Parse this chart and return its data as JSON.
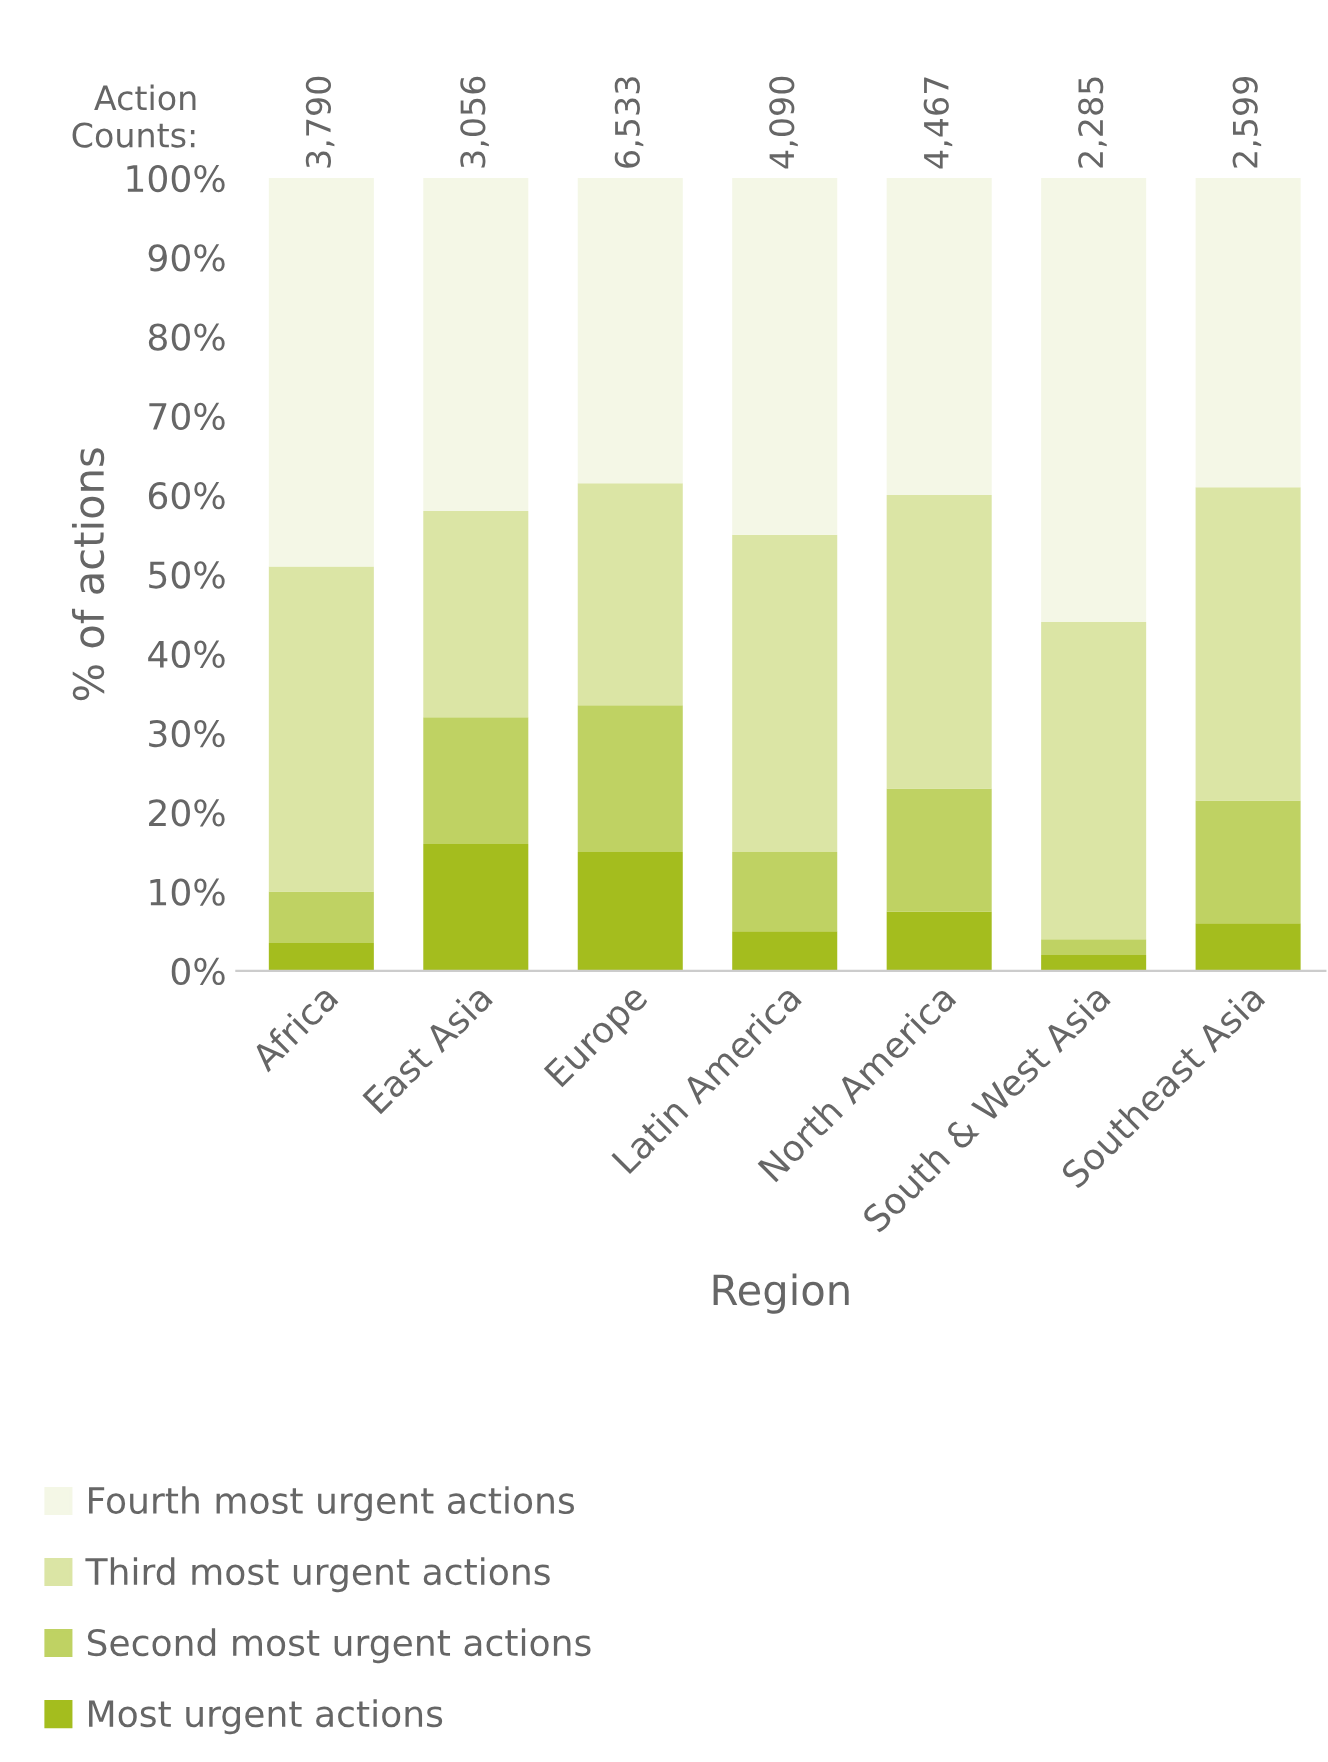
{
  "chart_data": {
    "type": "bar",
    "stacked": true,
    "xlabel": "Region",
    "ylabel": "% of actions",
    "categories": [
      "Africa",
      "East Asia",
      "Europe",
      "Latin America",
      "North America",
      "South & West Asia",
      "Southeast Asia"
    ],
    "series": [
      {
        "name": "Most urgent actions",
        "color": "#a4bd1e",
        "values": [
          3.5,
          16,
          15,
          5,
          7.5,
          2,
          6
        ]
      },
      {
        "name": "Second most urgent actions",
        "color": "#bfd263",
        "values": [
          6.5,
          16,
          18.5,
          10,
          15.5,
          2,
          15.5
        ]
      },
      {
        "name": "Third most urgent actions",
        "color": "#dbe5a5",
        "values": [
          41,
          26,
          28,
          40,
          37,
          40,
          39.5
        ]
      },
      {
        "name": "Fourth most urgent actions",
        "color": "#f4f7e6",
        "values": [
          49,
          42,
          38.5,
          45,
          40,
          56,
          39
        ]
      }
    ],
    "ylim": [
      0,
      100
    ],
    "yticks": [
      {
        "value": 0,
        "label": "0%"
      },
      {
        "value": 10,
        "label": "10%"
      },
      {
        "value": 20,
        "label": "20%"
      },
      {
        "value": 30,
        "label": "30%"
      },
      {
        "value": 40,
        "label": "40%"
      },
      {
        "value": 50,
        "label": "50%"
      },
      {
        "value": 60,
        "label": "60%"
      },
      {
        "value": 70,
        "label": "70%"
      },
      {
        "value": 80,
        "label": "80%"
      },
      {
        "value": 90,
        "label": "90%"
      },
      {
        "value": 100,
        "label": "100%"
      }
    ],
    "annotations": [
      "Action\nCounts:",
      "3,790",
      "3,056",
      "6,533",
      "4,090",
      "4,467",
      "2,285",
      "2,599"
    ],
    "grid": false,
    "legend": "bottom"
  }
}
